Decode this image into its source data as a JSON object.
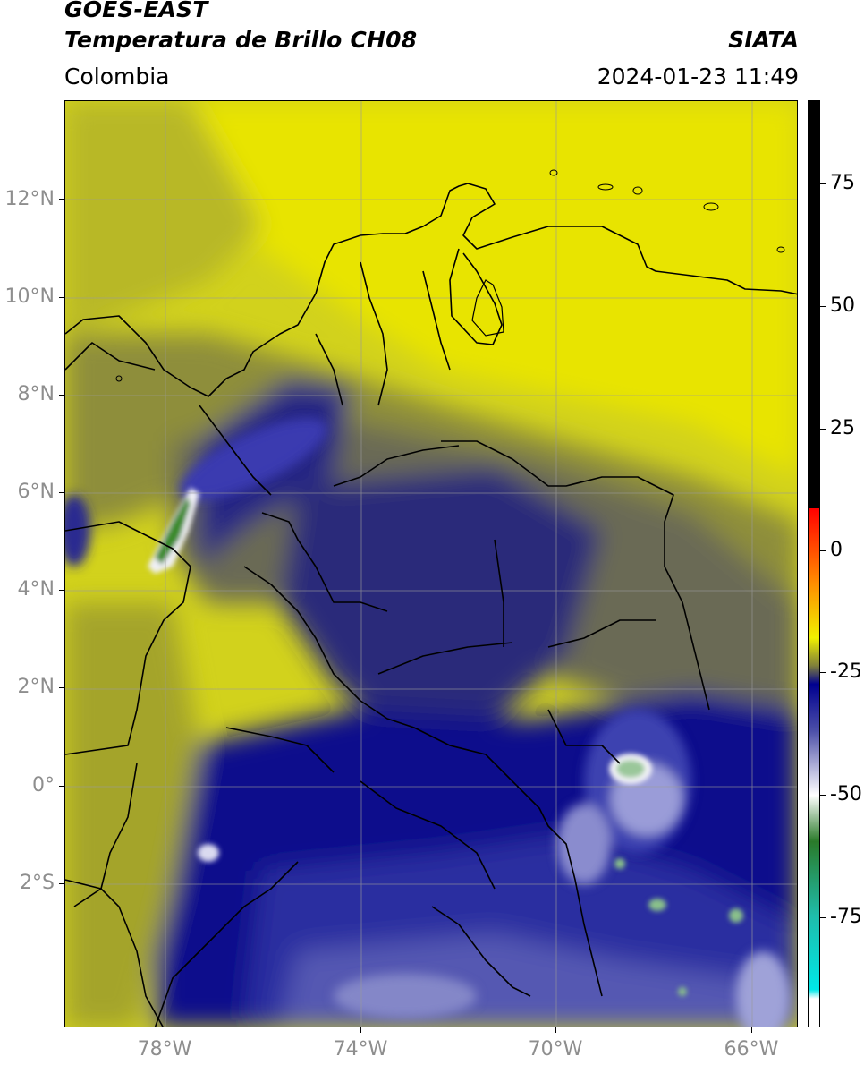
{
  "header": {
    "title_line1": "GOES-EAST",
    "title_line2": "Temperatura de Brillo CH08",
    "organization": "SIATA",
    "region": "Colombia",
    "timestamp": "2024-01-23 11:49"
  },
  "map": {
    "lat_labels": [
      "12°N",
      "10°N",
      "8°N",
      "6°N",
      "4°N",
      "2°N",
      "0°",
      "2°S"
    ],
    "lon_labels": [
      "78°W",
      "74°W",
      "70°W",
      "66°W"
    ],
    "colors": {
      "warm_yellow": "#e4e000",
      "olive": "#9a9a30",
      "gray_olive": "#6a6a52",
      "navy": "#1a1a80",
      "deep_blue": "#00008c",
      "light_blue": "#7f82c6",
      "white": "#f4f4f8",
      "green": "#3d8c2c",
      "coastline": "#000000",
      "graticule": "#9a9a9a"
    }
  },
  "colorbar": {
    "labels": [
      "75",
      "50",
      "25",
      "0",
      "-25",
      "-50",
      "-75"
    ],
    "colors": {
      "black": "#000000",
      "red": "#ff0000",
      "orange": "#ff8c00",
      "yellow": "#f0f000",
      "olive": "#80803a",
      "navy": "#000090",
      "white": "#ffffff",
      "green": "#2a7a2a",
      "teal": "#1fbcaa",
      "cyan": "#00e8e8"
    }
  }
}
